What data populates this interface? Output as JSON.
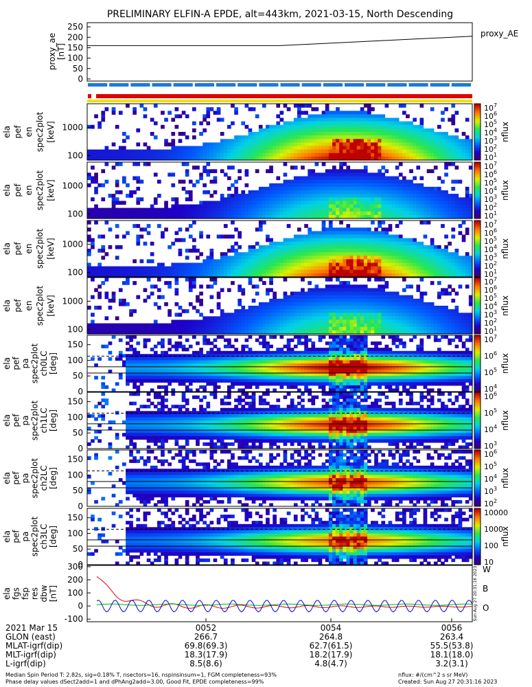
{
  "title": "PRELIMINARY ELFIN-A EPDE, alt=443km, 2021-03-15, North Descending",
  "proxy_panel": {
    "legend": "proxy_AE",
    "ylabel": "proxy_ae [nT]",
    "yticks": [
      "250",
      "200",
      "150",
      "100",
      "50",
      "0"
    ]
  },
  "spectro_panels": [
    {
      "ylabel": [
        "ela",
        "pef",
        "en",
        "spec2plot",
        "[keV]"
      ],
      "yticks": [
        "1000",
        "100"
      ],
      "cbar_ticks": [
        "10^7",
        "10^6",
        "10^5",
        "10^4",
        "10^3",
        "10^2",
        "10^1"
      ],
      "cbar_label": "nflux"
    },
    {
      "ylabel": [
        "ela",
        "pef",
        "en",
        "spec2plot",
        "[keV]"
      ],
      "yticks": [
        "1000",
        "100"
      ],
      "cbar_ticks": [
        "10^7",
        "10^6",
        "10^5",
        "10^4",
        "10^3",
        "10^2",
        "10^1"
      ],
      "cbar_label": "nflux"
    },
    {
      "ylabel": [
        "ela",
        "pef",
        "en",
        "spec2plot",
        "[keV]"
      ],
      "yticks": [
        "1000",
        "100"
      ],
      "cbar_ticks": [
        "10^7",
        "10^6",
        "10^5",
        "10^4",
        "10^3",
        "10^2",
        "10^1"
      ],
      "cbar_label": "nflux"
    },
    {
      "ylabel": [
        "ela",
        "pef",
        "en",
        "spec2plot",
        "[keV]"
      ],
      "yticks": [
        "1000",
        "100"
      ],
      "cbar_ticks": [
        "10^7",
        "10^6",
        "10^5",
        "10^4",
        "10^3",
        "10^2",
        "10^1"
      ],
      "cbar_label": "nflux"
    },
    {
      "ylabel": [
        "ela",
        "pef",
        "pa",
        "spec2plot",
        "ch0LC",
        "[deg]"
      ],
      "yticks": [
        "150",
        "100",
        "50",
        "0"
      ],
      "cbar_ticks": [
        "10^7",
        "10^6",
        "10^5",
        "10^4"
      ],
      "cbar_label": "nflux"
    },
    {
      "ylabel": [
        "ela",
        "pef",
        "pa",
        "spec2plot",
        "ch1LC",
        "[deg]"
      ],
      "yticks": [
        "150",
        "100",
        "50",
        "0"
      ],
      "cbar_ticks": [
        "10^6",
        "10^5",
        "10^4",
        "10^3"
      ],
      "cbar_label": "nflux"
    },
    {
      "ylabel": [
        "ela",
        "pef",
        "pa",
        "spec2plot",
        "ch2LC",
        "[deg]"
      ],
      "yticks": [
        "150",
        "100",
        "50",
        "0"
      ],
      "cbar_ticks": [
        "10^6",
        "10^5",
        "10^4",
        "10^3",
        "10^2"
      ],
      "cbar_label": "nflux"
    },
    {
      "ylabel": [
        "ela",
        "pef",
        "pa",
        "spec2plot",
        "ch3LC",
        "[deg]"
      ],
      "yticks": [
        "150",
        "100",
        "50",
        "0"
      ],
      "cbar_ticks": [
        "10000",
        "1000",
        "100",
        "10"
      ],
      "cbar_label": "nflux"
    }
  ],
  "fgs_panel": {
    "ylabel": [
      "ela",
      "fgs",
      "fsp",
      "res",
      "dbw",
      "[nT]"
    ],
    "yticks": [
      "300",
      "200",
      "100",
      "0",
      "-100"
    ],
    "legend": [
      "W",
      "B",
      "O"
    ],
    "colors": {
      "W": "#e00000",
      "B": "#00b000",
      "O": "#0000e0"
    },
    "side_note": "Sun Aug 27 20:31:16 2023"
  },
  "footer": {
    "rows": [
      {
        "label": "2021 Mar 15",
        "vals": [
          "0052",
          "0054",
          "0056"
        ]
      },
      {
        "label": "GLON (east)",
        "vals": [
          "266.7",
          "264.8",
          "263.4"
        ]
      },
      {
        "label": "MLAT-igrf(dip)",
        "vals": [
          "69.8(69.3)",
          "62.7(61.5)",
          "55.5(53.8)"
        ]
      },
      {
        "label": "MLT-igrf(dip)",
        "vals": [
          "18.3(17.9)",
          "18.2(17.9)",
          "18.1(18.0)"
        ]
      },
      {
        "label": "L-igrf(dip)",
        "vals": [
          "8.5(8.6)",
          "4.8(4.7)",
          "3.2(3.1)"
        ]
      }
    ],
    "note_left_1": "Median Spin Period T: 2.82s, sig=0.18% T, nsectors=16, nspinsinsum=1, FGM completeness=93%",
    "note_left_2": "Phase delay values dSect2add=1 and dPhAng2add=3.00, Good Fit, EPDE completeness=99%",
    "note_right_1": "nflux: #/(cm^2 s sr MeV)",
    "note_right_2": "Created: Sun Aug 27 20:31:16 2023"
  },
  "chart_data": [
    {
      "type": "line",
      "title": "PRELIMINARY ELFIN-A EPDE, alt=443km, 2021-03-15, North Descending",
      "ylabel": "proxy_ae [nT]",
      "ylim": [
        -10,
        270
      ],
      "x_tick_labels": [
        "0052",
        "0054",
        "0056"
      ],
      "series": [
        {
          "name": "proxy_AE",
          "x_frac": [
            0.0,
            0.5,
            1.0
          ],
          "values": [
            160,
            160,
            205
          ]
        }
      ]
    },
    {
      "type": "heatmap",
      "panels": [
        "energy spectra (4)",
        "pitch-angle spectra ch0LC..ch3LC (4)"
      ],
      "yticks_energy_keV": [
        1000,
        100
      ],
      "yticks_pa_deg": [
        150,
        100,
        50,
        0
      ]
    },
    {
      "type": "line",
      "ylabel": "[nT]",
      "ylim": [
        -120,
        310
      ],
      "yticks": [
        300,
        200,
        100,
        0,
        -100
      ],
      "series": [
        {
          "name": "W",
          "color": "#e00000"
        },
        {
          "name": "B",
          "color": "#00b000"
        },
        {
          "name": "O",
          "color": "#0000e0"
        }
      ]
    }
  ]
}
